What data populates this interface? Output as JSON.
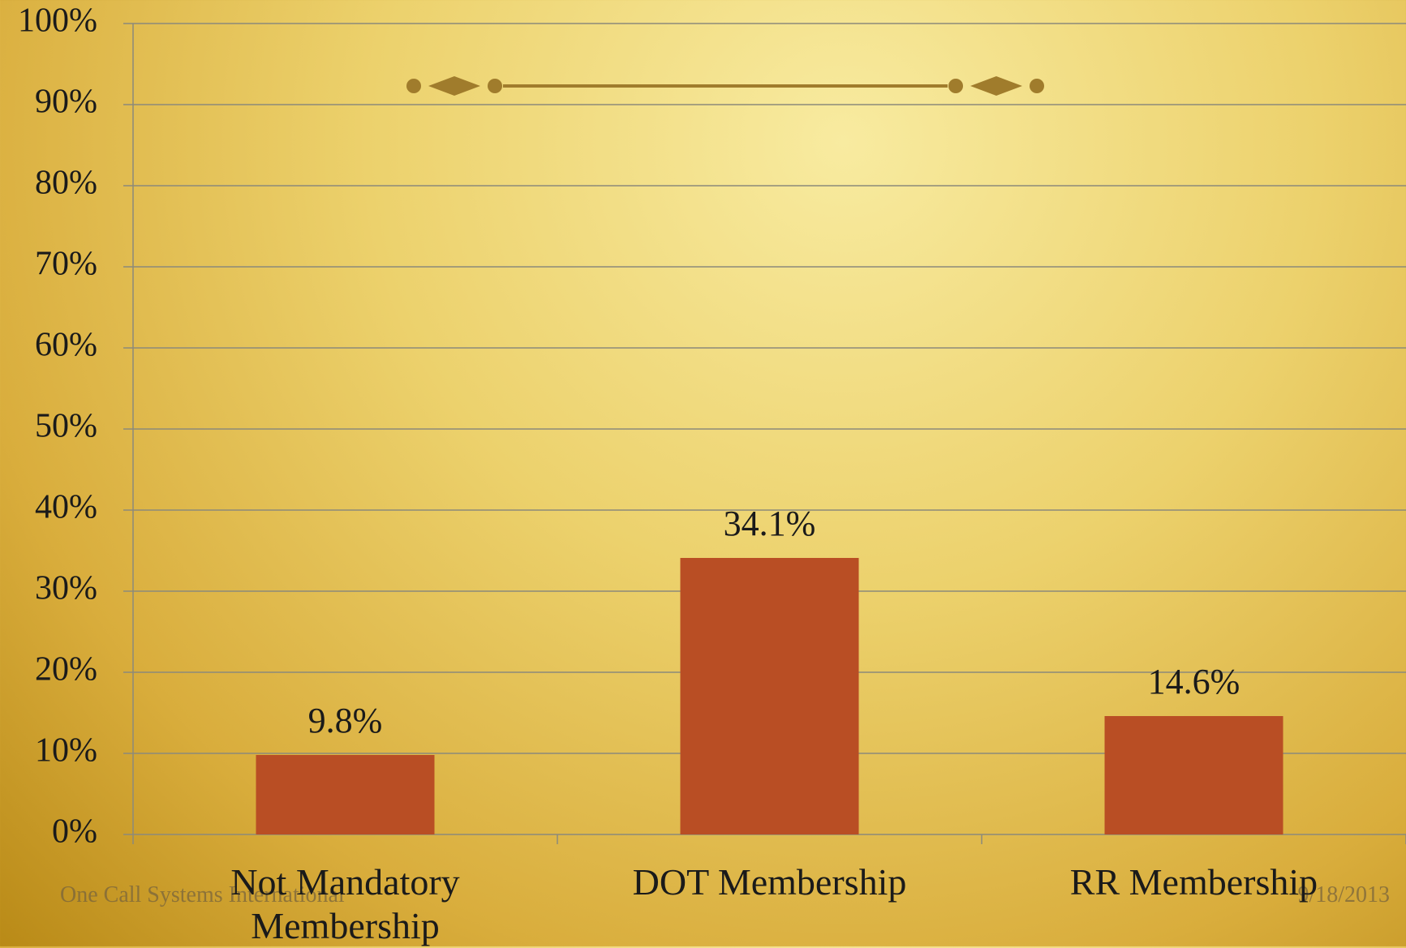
{
  "chart_data": {
    "type": "bar",
    "categories": [
      "Not Mandatory Membership",
      "DOT Membership",
      "RR Membership"
    ],
    "values": [
      9.8,
      34.1,
      14.6
    ],
    "value_labels": [
      "9.8%",
      "34.1%",
      "14.6%"
    ],
    "color": "#b94e24",
    "ylim": [
      0,
      100
    ],
    "yticks": [
      {
        "value": 0,
        "label": "0%"
      },
      {
        "value": 10,
        "label": "10%"
      },
      {
        "value": 20,
        "label": "20%"
      },
      {
        "value": 30,
        "label": "30%"
      },
      {
        "value": 40,
        "label": "40%"
      },
      {
        "value": 50,
        "label": "50%"
      },
      {
        "value": 60,
        "label": "60%"
      },
      {
        "value": 70,
        "label": "70%"
      },
      {
        "value": 80,
        "label": "80%"
      },
      {
        "value": 90,
        "label": "90%"
      },
      {
        "value": 100,
        "label": "100%"
      }
    ],
    "grid": true
  },
  "footer": {
    "left": "One Call Systems International",
    "right": "9/18/2013"
  }
}
